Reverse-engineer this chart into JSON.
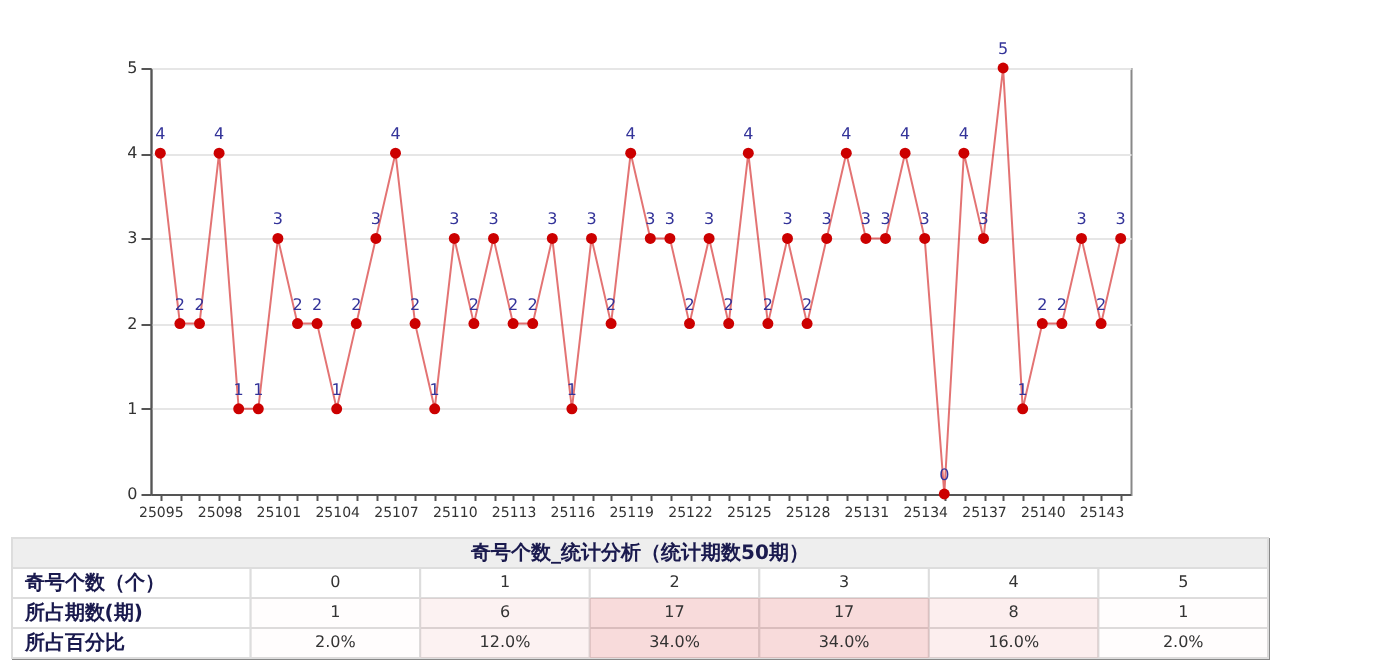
{
  "chart_data": [
    {
      "type": "line",
      "categories": [
        "25095",
        null,
        null,
        "25098",
        null,
        null,
        "25101",
        null,
        null,
        "25104",
        null,
        null,
        "25107",
        null,
        null,
        "25110",
        null,
        null,
        "25113",
        null,
        null,
        "25116",
        null,
        null,
        "25119",
        null,
        null,
        "25122",
        null,
        null,
        "25125",
        null,
        null,
        "25128",
        null,
        null,
        "25131",
        null,
        null,
        "25134",
        null,
        null,
        "25137",
        null,
        null,
        "25140",
        null,
        null,
        "25143",
        null
      ],
      "series": [
        {
          "color": "#cc0000",
          "values": [
            4,
            2,
            2,
            4,
            1,
            1,
            3,
            2,
            2,
            1,
            2,
            3,
            4,
            2,
            1,
            3,
            2,
            3,
            2,
            2,
            3,
            1,
            3,
            2,
            4,
            3,
            3,
            2,
            3,
            2,
            4,
            2,
            3,
            2,
            3,
            4,
            3,
            3,
            4,
            3,
            0,
            4,
            3,
            5,
            1,
            2,
            2,
            3,
            2,
            3
          ]
        }
      ],
      "ylim": [
        0,
        5
      ],
      "yticks": [
        0,
        1,
        2,
        3,
        4,
        5
      ],
      "grid": "y",
      "marker": "circle",
      "line_style": "solid",
      "data_labels": true,
      "legend": false
    },
    {
      "type": "heatmap",
      "title": "奇号个数_统计分析（统计期数50期）",
      "xlabel": "奇号个数（个）",
      "categories": [
        "0",
        "1",
        "2",
        "3",
        "4",
        "5"
      ],
      "y_categories": [
        "所占期数(期)",
        "所占百分比"
      ],
      "cells": [
        [
          1,
          6,
          17,
          17,
          8,
          1
        ],
        [
          2.0,
          12.0,
          34.0,
          34.0,
          16.0,
          2.0
        ]
      ],
      "cell_labels": [
        [
          "1",
          "6",
          "17",
          "17",
          "8",
          "1"
        ],
        [
          "2.0%",
          "12.0%",
          "34.0%",
          "34.0%",
          "16.0%",
          "2.0%"
        ]
      ]
    }
  ]
}
